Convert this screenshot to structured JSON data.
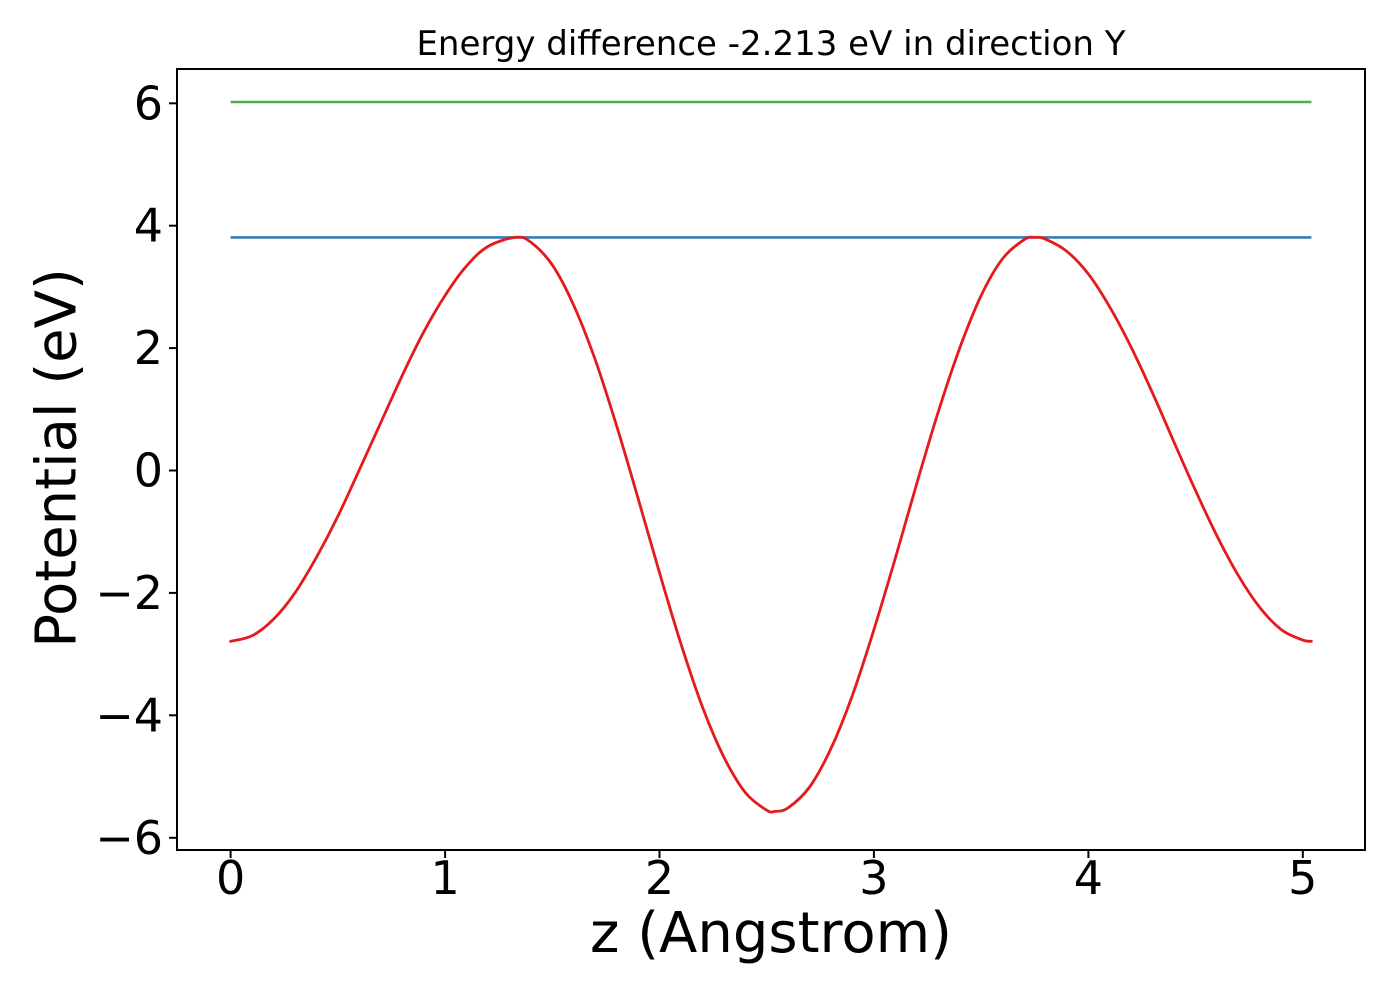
{
  "chart_data": {
    "type": "line",
    "title": "Energy difference -2.213 eV in direction Y",
    "xlabel": "z (Angstrom)",
    "ylabel": "Potential (eV)",
    "xlim": [
      -0.25,
      5.29
    ],
    "ylim": [
      -6.2,
      6.56
    ],
    "xticks": [
      0,
      1,
      2,
      3,
      4,
      5
    ],
    "yticks": [
      -6,
      -4,
      -2,
      0,
      2,
      4,
      6
    ],
    "grid": false,
    "legend": null,
    "energy_difference_eV": -2.213,
    "direction": "Y",
    "series": [
      {
        "id": "vacuum-level-line-blue",
        "type": "hline",
        "color": "#377eb8",
        "value": 3.808,
        "x_span": [
          0,
          5.04
        ]
      },
      {
        "id": "vacuum-level-line-green",
        "type": "hline",
        "color": "#4daf4a",
        "value": 6.021,
        "x_span": [
          0,
          5.04
        ]
      },
      {
        "id": "planar-average-potential-curve",
        "type": "curve",
        "color": "#e41a1c",
        "points": [
          [
            0.0,
            -2.79
          ],
          [
            0.1,
            -2.7
          ],
          [
            0.2,
            -2.43
          ],
          [
            0.3,
            -2.0
          ],
          [
            0.4,
            -1.42
          ],
          [
            0.5,
            -0.75
          ],
          [
            0.6,
            0.01
          ],
          [
            0.7,
            0.78
          ],
          [
            0.8,
            1.55
          ],
          [
            0.9,
            2.26
          ],
          [
            1.0,
            2.86
          ],
          [
            1.1,
            3.34
          ],
          [
            1.2,
            3.66
          ],
          [
            1.33,
            3.81
          ],
          [
            1.4,
            3.73
          ],
          [
            1.5,
            3.36
          ],
          [
            1.6,
            2.7
          ],
          [
            1.7,
            1.81
          ],
          [
            1.8,
            0.73
          ],
          [
            1.9,
            -0.45
          ],
          [
            2.0,
            -1.67
          ],
          [
            2.1,
            -2.83
          ],
          [
            2.2,
            -3.86
          ],
          [
            2.3,
            -4.68
          ],
          [
            2.4,
            -5.26
          ],
          [
            2.5,
            -5.55
          ],
          [
            2.54,
            -5.57
          ],
          [
            2.6,
            -5.51
          ],
          [
            2.7,
            -5.17
          ],
          [
            2.8,
            -4.54
          ],
          [
            2.9,
            -3.67
          ],
          [
            3.0,
            -2.6
          ],
          [
            3.1,
            -1.43
          ],
          [
            3.2,
            -0.21
          ],
          [
            3.3,
            0.96
          ],
          [
            3.4,
            2.0
          ],
          [
            3.5,
            2.86
          ],
          [
            3.6,
            3.46
          ],
          [
            3.7,
            3.77
          ],
          [
            3.75,
            3.81
          ],
          [
            3.8,
            3.78
          ],
          [
            3.9,
            3.58
          ],
          [
            4.0,
            3.21
          ],
          [
            4.1,
            2.67
          ],
          [
            4.2,
            2.01
          ],
          [
            4.3,
            1.26
          ],
          [
            4.4,
            0.46
          ],
          [
            4.5,
            -0.33
          ],
          [
            4.6,
            -1.07
          ],
          [
            4.7,
            -1.72
          ],
          [
            4.8,
            -2.24
          ],
          [
            4.9,
            -2.6
          ],
          [
            5.0,
            -2.77
          ],
          [
            5.04,
            -2.79
          ]
        ]
      }
    ]
  }
}
